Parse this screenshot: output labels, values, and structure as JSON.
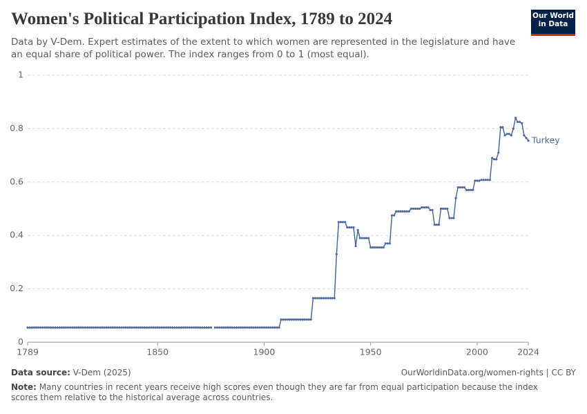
{
  "title": "Women's Political Participation Index, 1789 to 2024",
  "subtitle": "Data by V-Dem. Expert estimates of the extent to which women are represented in the legislature and have an equal share of political power. The index ranges from 0 to 1 (most equal).",
  "logo": [
    "Our World",
    "in Data"
  ],
  "source_label": "Data source:",
  "source": "V-Dem (2025)",
  "url": "OurWorldinData.org/women-rights | CC BY",
  "note_label": "Note:",
  "note": "Many countries in recent years receive high scores even though they are far from equal participation because the index scores them relative to the historical average across countries.",
  "chart_data": {
    "type": "line",
    "xlim": [
      1789,
      2024
    ],
    "xticks": [
      1789,
      1850,
      1900,
      1950,
      2000,
      2024
    ],
    "ylim": [
      0,
      1
    ],
    "yticks": [
      0,
      0.2,
      0.4,
      0.6,
      0.8,
      1
    ],
    "grid": true,
    "x": [
      1789,
      1790,
      1791,
      1792,
      1793,
      1794,
      1795,
      1796,
      1797,
      1798,
      1799,
      1800,
      1801,
      1802,
      1803,
      1804,
      1805,
      1806,
      1807,
      1808,
      1809,
      1810,
      1811,
      1812,
      1813,
      1814,
      1815,
      1816,
      1817,
      1818,
      1819,
      1820,
      1821,
      1822,
      1823,
      1824,
      1825,
      1826,
      1827,
      1828,
      1829,
      1830,
      1831,
      1832,
      1833,
      1834,
      1835,
      1836,
      1837,
      1838,
      1839,
      1840,
      1841,
      1842,
      1843,
      1844,
      1845,
      1846,
      1847,
      1848,
      1849,
      1850,
      1851,
      1852,
      1853,
      1854,
      1855,
      1856,
      1857,
      1858,
      1859,
      1860,
      1861,
      1862,
      1863,
      1864,
      1865,
      1866,
      1867,
      1868,
      1869,
      1870,
      1871,
      1872,
      1873,
      1874,
      1875,
      1876,
      1877,
      1878,
      1879,
      1880,
      1881,
      1882,
      1883,
      1884,
      1885,
      1886,
      1887,
      1888,
      1889,
      1890,
      1891,
      1892,
      1893,
      1894,
      1895,
      1896,
      1897,
      1898,
      1899,
      1900,
      1901,
      1902,
      1903,
      1904,
      1905,
      1906,
      1907,
      1908,
      1909,
      1910,
      1911,
      1912,
      1913,
      1914,
      1915,
      1916,
      1917,
      1918,
      1919,
      1920,
      1921,
      1922,
      1923,
      1924,
      1925,
      1926,
      1927,
      1928,
      1929,
      1930,
      1931,
      1932,
      1933,
      1934,
      1935,
      1936,
      1937,
      1938,
      1939,
      1940,
      1941,
      1942,
      1943,
      1944,
      1945,
      1946,
      1947,
      1948,
      1949,
      1950,
      1951,
      1952,
      1953,
      1954,
      1955,
      1956,
      1957,
      1958,
      1959,
      1960,
      1961,
      1962,
      1963,
      1964,
      1965,
      1966,
      1967,
      1968,
      1969,
      1970,
      1971,
      1972,
      1973,
      1974,
      1975,
      1976,
      1977,
      1978,
      1979,
      1980,
      1981,
      1982,
      1983,
      1984,
      1985,
      1986,
      1987,
      1988,
      1989,
      1990,
      1991,
      1992,
      1993,
      1994,
      1995,
      1996,
      1997,
      1998,
      1999,
      2000,
      2001,
      2002,
      2003,
      2004,
      2005,
      2006,
      2007,
      2008,
      2009,
      2010,
      2011,
      2012,
      2013,
      2014,
      2015,
      2016,
      2017,
      2018,
      2019,
      2020,
      2021,
      2022,
      2023,
      2024
    ],
    "series": [
      {
        "name": "Turkey",
        "color": "#4c6a9c",
        "values": [
          0.055,
          0.055,
          0.055,
          0.055,
          0.055,
          0.055,
          0.055,
          0.055,
          0.055,
          0.055,
          0.055,
          0.055,
          0.055,
          0.055,
          0.055,
          0.055,
          0.055,
          0.055,
          0.055,
          0.055,
          0.055,
          0.055,
          0.055,
          0.055,
          0.055,
          0.055,
          0.055,
          0.055,
          0.055,
          0.055,
          0.055,
          0.055,
          0.055,
          0.055,
          0.055,
          0.055,
          0.055,
          0.055,
          0.055,
          0.055,
          0.055,
          0.055,
          0.055,
          0.055,
          0.055,
          0.055,
          0.055,
          0.055,
          0.055,
          0.055,
          0.055,
          0.055,
          0.055,
          0.055,
          0.055,
          0.055,
          0.055,
          0.055,
          0.055,
          0.055,
          0.055,
          0.055,
          0.055,
          0.055,
          0.055,
          0.055,
          0.055,
          0.055,
          0.055,
          0.055,
          0.055,
          0.055,
          0.055,
          0.055,
          0.055,
          0.055,
          0.055,
          0.055,
          0.055,
          0.055,
          0.055,
          0.055,
          0.055,
          0.055,
          0.055,
          0.055,
          0.055,
          null,
          0.055,
          0.055,
          0.055,
          0.055,
          0.055,
          0.055,
          0.055,
          0.055,
          0.055,
          0.055,
          0.055,
          0.055,
          0.055,
          0.055,
          0.055,
          0.055,
          0.055,
          0.055,
          0.055,
          0.055,
          0.055,
          0.055,
          0.055,
          0.055,
          0.055,
          0.055,
          0.055,
          0.055,
          0.055,
          0.055,
          0.055,
          0.085,
          0.085,
          0.085,
          0.085,
          0.085,
          0.085,
          0.085,
          0.085,
          0.085,
          0.085,
          0.085,
          0.085,
          0.085,
          0.085,
          0.085,
          0.165,
          0.165,
          0.165,
          0.165,
          0.165,
          0.165,
          0.165,
          0.165,
          0.165,
          0.165,
          0.165,
          0.33,
          0.45,
          0.45,
          0.45,
          0.45,
          0.43,
          0.43,
          0.43,
          0.43,
          0.36,
          0.42,
          0.39,
          0.39,
          0.39,
          0.39,
          0.39,
          0.355,
          0.355,
          0.355,
          0.355,
          0.355,
          0.355,
          0.355,
          0.37,
          0.37,
          0.37,
          0.475,
          0.475,
          0.49,
          0.49,
          0.49,
          0.49,
          0.49,
          0.49,
          0.49,
          0.5,
          0.5,
          0.5,
          0.5,
          0.5,
          0.505,
          0.505,
          0.505,
          0.505,
          0.495,
          0.495,
          0.44,
          0.44,
          0.44,
          0.5,
          0.5,
          0.5,
          0.5,
          0.465,
          0.465,
          0.465,
          0.54,
          0.58,
          0.58,
          0.58,
          0.58,
          0.57,
          0.57,
          0.57,
          0.57,
          0.605,
          0.605,
          0.605,
          0.608,
          0.608,
          0.608,
          0.608,
          0.608,
          0.69,
          0.685,
          0.685,
          0.71,
          0.805,
          0.805,
          0.775,
          0.78,
          0.78,
          0.775,
          0.8,
          0.84,
          0.825,
          0.825,
          0.82,
          0.775,
          0.765,
          0.755
        ]
      }
    ]
  }
}
